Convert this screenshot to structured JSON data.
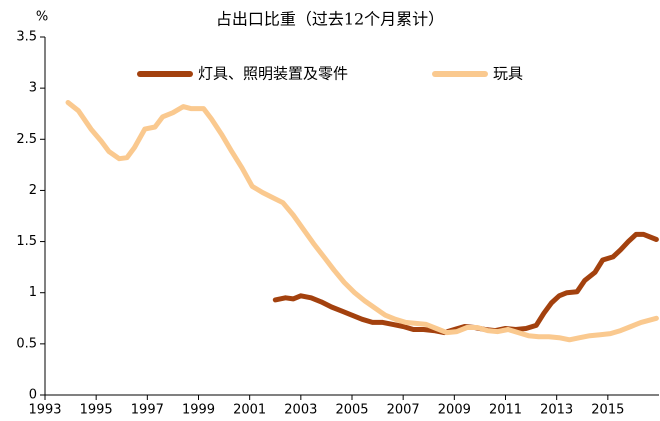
{
  "chart_data": {
    "type": "line",
    "title": "占出口比重（过去12个月累计）",
    "y_label": "%",
    "xlim": [
      1993,
      2017
    ],
    "xticks": [
      1993,
      1995,
      1997,
      1999,
      2001,
      2003,
      2005,
      2007,
      2009,
      2011,
      2013,
      2015
    ],
    "ylim": [
      0,
      3.5
    ],
    "yticks": [
      0,
      0.5,
      1,
      1.5,
      2,
      2.5,
      3,
      3.5
    ],
    "grid": false,
    "legend": "top",
    "series": [
      {
        "name": "灯具、照明装置及零件",
        "color": "#a3410e",
        "x": [
          2002.0,
          2002.4,
          2002.7,
          2003.0,
          2003.4,
          2003.8,
          2004.2,
          2004.6,
          2005.0,
          2005.4,
          2005.8,
          2006.2,
          2006.6,
          2007.0,
          2007.4,
          2007.8,
          2008.2,
          2008.6,
          2009.0,
          2009.4,
          2009.8,
          2010.2,
          2010.6,
          2011.0,
          2011.4,
          2011.8,
          2012.2,
          2012.5,
          2012.8,
          2013.1,
          2013.4,
          2013.8,
          2014.1,
          2014.5,
          2014.8,
          2015.2,
          2015.5,
          2015.8,
          2016.1,
          2016.4,
          2016.9
        ],
        "values": [
          0.93,
          0.95,
          0.94,
          0.97,
          0.95,
          0.91,
          0.86,
          0.82,
          0.78,
          0.74,
          0.71,
          0.71,
          0.69,
          0.67,
          0.64,
          0.64,
          0.63,
          0.61,
          0.64,
          0.67,
          0.66,
          0.64,
          0.63,
          0.65,
          0.64,
          0.65,
          0.68,
          0.8,
          0.9,
          0.97,
          1.0,
          1.01,
          1.12,
          1.2,
          1.32,
          1.35,
          1.42,
          1.5,
          1.57,
          1.57,
          1.52
        ]
      },
      {
        "name": "玩具",
        "color": "#fac98f",
        "x": [
          1993.9,
          1994.3,
          1994.8,
          1995.2,
          1995.5,
          1995.9,
          1996.2,
          1996.5,
          1996.9,
          1997.3,
          1997.6,
          1998.0,
          1998.4,
          1998.7,
          1999.2,
          1999.5,
          1999.9,
          2000.3,
          2000.7,
          2001.1,
          2001.5,
          2001.9,
          2002.3,
          2002.7,
          2003.1,
          2003.5,
          2003.9,
          2004.3,
          2004.7,
          2005.1,
          2005.5,
          2005.9,
          2006.3,
          2006.7,
          2007.1,
          2007.5,
          2007.9,
          2008.3,
          2008.7,
          2009.1,
          2009.5,
          2009.9,
          2010.3,
          2010.7,
          2011.1,
          2011.5,
          2011.9,
          2012.3,
          2012.7,
          2013.1,
          2013.5,
          2013.9,
          2014.3,
          2014.7,
          2015.1,
          2015.5,
          2015.9,
          2016.3,
          2016.9
        ],
        "values": [
          2.86,
          2.78,
          2.6,
          2.48,
          2.38,
          2.31,
          2.32,
          2.42,
          2.6,
          2.62,
          2.72,
          2.76,
          2.82,
          2.8,
          2.8,
          2.7,
          2.55,
          2.38,
          2.22,
          2.04,
          1.98,
          1.93,
          1.88,
          1.76,
          1.62,
          1.48,
          1.35,
          1.22,
          1.1,
          1.0,
          0.92,
          0.85,
          0.78,
          0.74,
          0.71,
          0.7,
          0.69,
          0.65,
          0.61,
          0.62,
          0.66,
          0.66,
          0.63,
          0.62,
          0.64,
          0.61,
          0.58,
          0.57,
          0.57,
          0.56,
          0.54,
          0.56,
          0.58,
          0.59,
          0.6,
          0.63,
          0.67,
          0.71,
          0.75
        ]
      }
    ]
  }
}
